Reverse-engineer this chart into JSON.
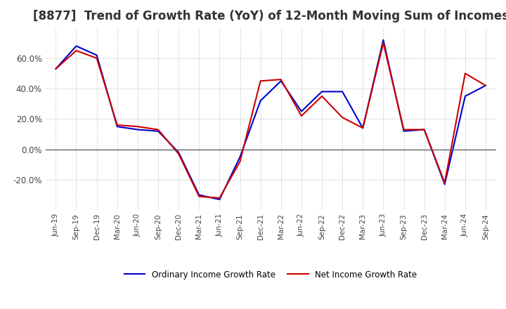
{
  "title": "[8877]  Trend of Growth Rate (YoY) of 12-Month Moving Sum of Incomes",
  "title_fontsize": 12,
  "background_color": "#ffffff",
  "plot_bg_color": "#ffffff",
  "grid_color": "#aaaaaa",
  "legend_labels": [
    "Ordinary Income Growth Rate",
    "Net Income Growth Rate"
  ],
  "legend_colors": [
    "#0000cc",
    "#cc0000"
  ],
  "x_labels": [
    "Jun-19",
    "Sep-19",
    "Dec-19",
    "Mar-20",
    "Jun-20",
    "Sep-20",
    "Dec-20",
    "Mar-21",
    "Jun-21",
    "Sep-21",
    "Dec-21",
    "Mar-22",
    "Jun-22",
    "Sep-22",
    "Dec-22",
    "Mar-23",
    "Jun-23",
    "Sep-23",
    "Dec-23",
    "Mar-24",
    "Jun-24",
    "Sep-24"
  ],
  "ordinary_income_growth": [
    53.0,
    68.0,
    62.0,
    15.0,
    13.0,
    12.0,
    -2.0,
    -30.0,
    -33.0,
    -5.0,
    32.0,
    45.0,
    25.0,
    38.0,
    38.0,
    14.0,
    72.0,
    12.0,
    13.0,
    -23.0,
    35.0,
    42.0
  ],
  "net_income_growth": [
    53.0,
    65.0,
    60.0,
    16.0,
    15.0,
    13.0,
    -3.0,
    -31.0,
    -32.0,
    -8.0,
    45.0,
    46.0,
    22.0,
    35.0,
    21.0,
    14.0,
    70.0,
    13.0,
    13.0,
    -22.0,
    50.0,
    42.0
  ],
  "ylim": [
    -40,
    80
  ],
  "yticks": [
    -20.0,
    0.0,
    20.0,
    40.0,
    60.0
  ]
}
